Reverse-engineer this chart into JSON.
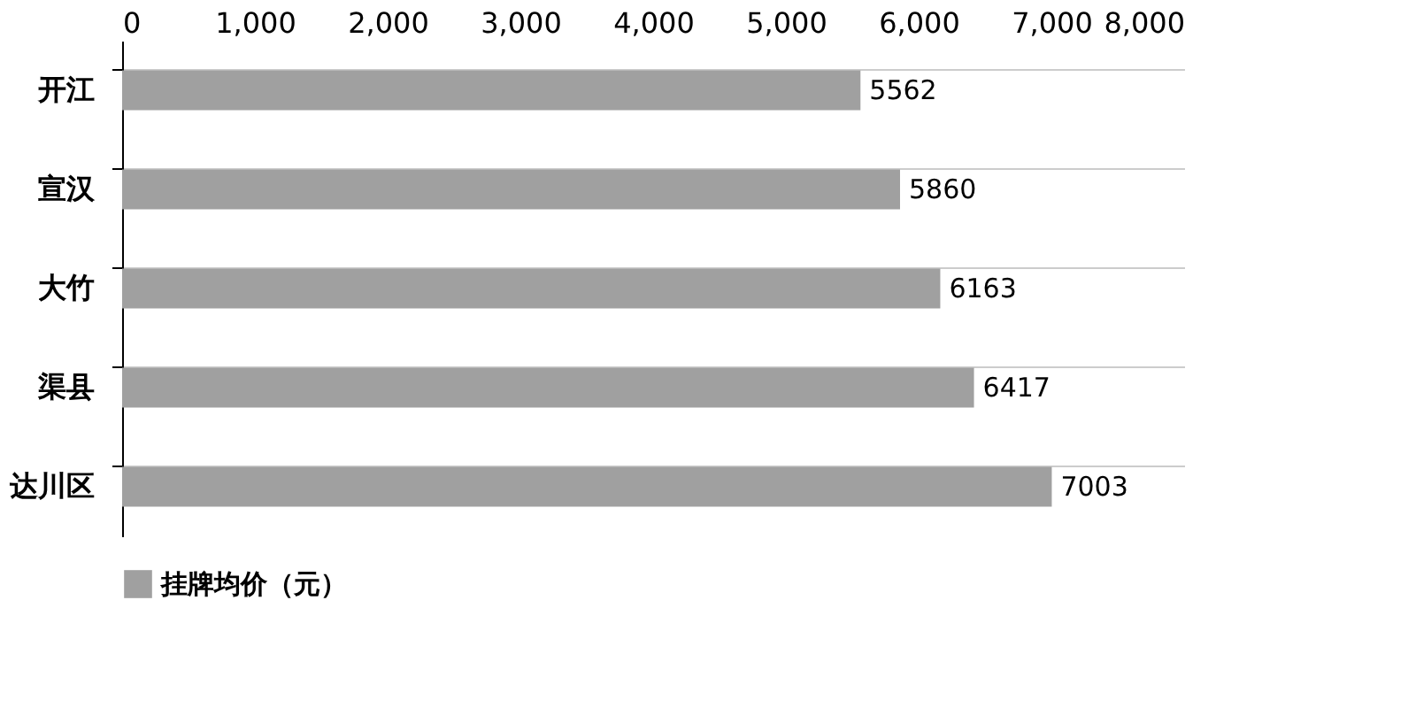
{
  "chart_data": {
    "type": "bar",
    "orientation": "horizontal",
    "categories": [
      "开江",
      "宣汉",
      "大竹",
      "渠县",
      "达川区"
    ],
    "series": [
      {
        "name": "挂牌均价（元）",
        "color": "#a0a0a0",
        "values": [
          5562,
          5860,
          6163,
          6417,
          7003
        ]
      }
    ],
    "xlim": [
      0,
      8000
    ],
    "xticks": [
      0,
      {
        "value": 1000,
        "label": "1,000"
      },
      {
        "value": 2000,
        "label": "2,000"
      },
      {
        "value": 3000,
        "label": "3,000"
      },
      {
        "value": 4000,
        "label": "4,000"
      },
      {
        "value": 5000,
        "label": "5,000"
      },
      {
        "value": 6000,
        "label": "6,000"
      },
      {
        "value": 7000,
        "label": "7,000"
      },
      {
        "value": 8000,
        "label": "8,000"
      }
    ],
    "grid": "y",
    "legend": "bottom",
    "data_labels": true
  }
}
